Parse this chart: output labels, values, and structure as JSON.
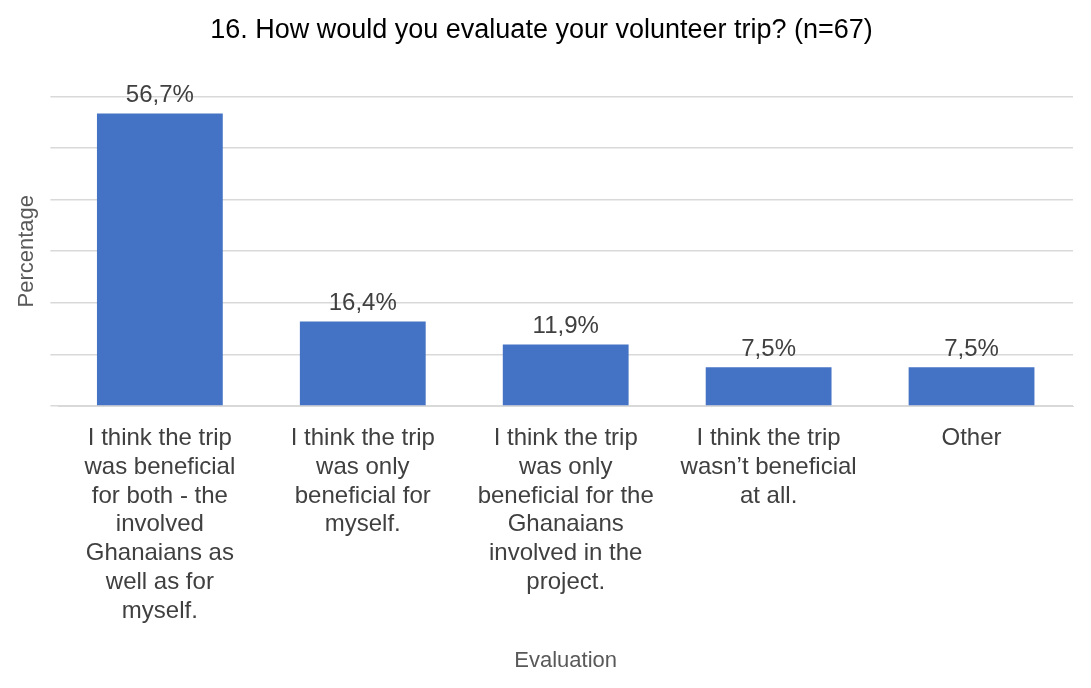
{
  "chart_data": {
    "type": "bar",
    "title": "16. How would you evaluate your volunteer trip? (n=67)",
    "xlabel": "Evaluation",
    "ylabel": "Percentage",
    "categories": [
      "I think the trip was beneficial for both - the involved Ghanaians as well as for myself.",
      "I think the trip was only beneficial for myself.",
      "I think the trip was only beneficial for the Ghanaians involved in the project.",
      "I think the trip wasn’t beneficial at all.",
      "Other"
    ],
    "values": [
      56.7,
      16.4,
      11.9,
      7.5,
      7.5
    ],
    "value_labels": [
      "56,7%",
      "16,4%",
      "11,9%",
      "7,5%",
      "7,5%"
    ],
    "color": "#4472c4",
    "ylim": [
      0,
      60
    ],
    "yticks": [
      {
        "value": 0,
        "label": null
      },
      {
        "value": 10,
        "label": null
      },
      {
        "value": 20,
        "label": null
      },
      {
        "value": 30,
        "label": null
      },
      {
        "value": 40,
        "label": null
      },
      {
        "value": 50,
        "label": null
      },
      {
        "value": 60,
        "label": null
      }
    ],
    "grid": "y",
    "tick_labels": "x"
  }
}
